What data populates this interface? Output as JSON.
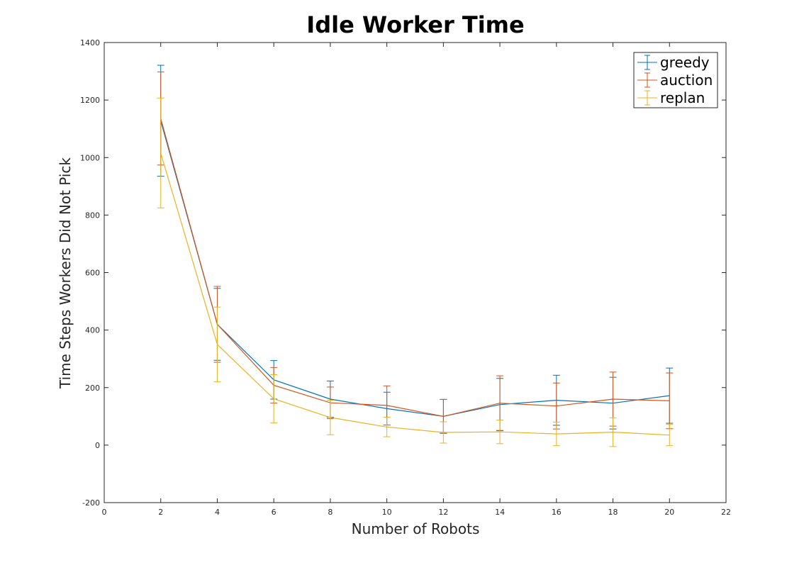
{
  "chart_data": {
    "type": "line",
    "title": "Idle Worker Time",
    "xlabel": "Number of Robots",
    "ylabel": "Time Steps Workers Did Not Pick",
    "xlim": [
      0,
      22
    ],
    "ylim": [
      -200,
      1400
    ],
    "xticks": [
      0,
      2,
      4,
      6,
      8,
      10,
      12,
      14,
      16,
      18,
      20,
      22
    ],
    "yticks": [
      -200,
      0,
      200,
      400,
      600,
      800,
      1000,
      1200,
      1400
    ],
    "grid": false,
    "legend_position": "top-right",
    "x": [
      2,
      4,
      6,
      8,
      10,
      12,
      14,
      16,
      18,
      20
    ],
    "series": [
      {
        "name": "greedy",
        "color": "#0072BD",
        "values": [
          1128,
          420,
          227,
          160,
          127,
          100,
          141,
          156,
          146,
          172
        ],
        "error": [
          193,
          125,
          67,
          63,
          57,
          59,
          91,
          87,
          90,
          96
        ]
      },
      {
        "name": "auction",
        "color": "#D95319",
        "values": [
          1136,
          420,
          208,
          147,
          138,
          100,
          146,
          136,
          160,
          154
        ],
        "error": [
          162,
          132,
          62,
          55,
          68,
          59,
          95,
          80,
          94,
          97
        ]
      },
      {
        "name": "replan",
        "color": "#EDB120",
        "values": [
          1016,
          350,
          161,
          96,
          63,
          44,
          46,
          39,
          45,
          35
        ],
        "error": [
          191,
          130,
          84,
          60,
          34,
          37,
          41,
          41,
          50,
          37
        ]
      }
    ]
  }
}
